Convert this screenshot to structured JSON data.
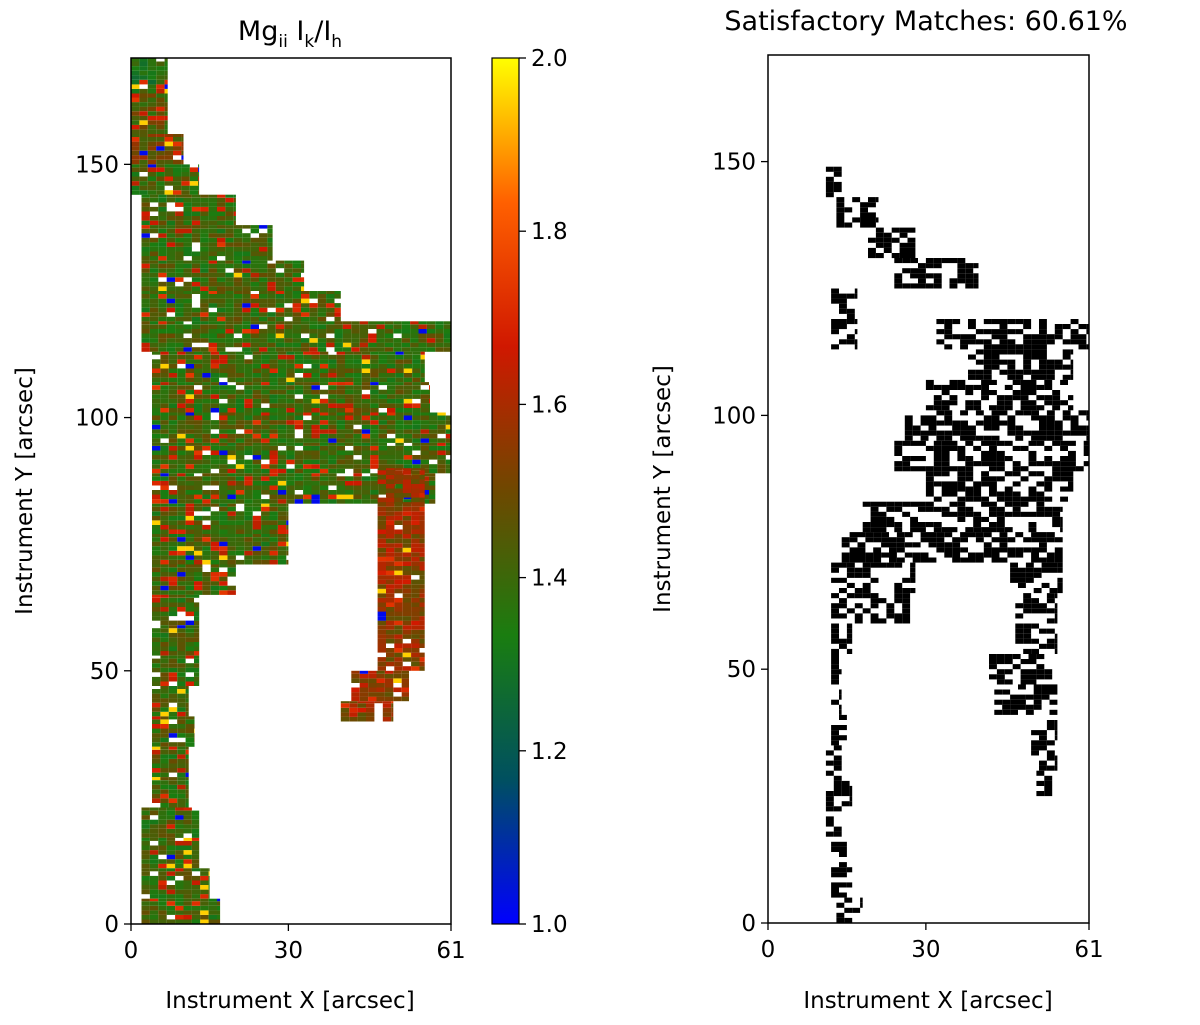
{
  "chart_data": [
    {
      "type": "heatmap",
      "title": {
        "base": "Mg",
        "sub1": "ii",
        "mid": " I",
        "sub2": "k",
        "slash": "/I",
        "sub3": "h"
      },
      "xlabel": "Instrument X [arcsec]",
      "ylabel": "Instrument Y [arcsec]",
      "xlim": [
        0,
        61
      ],
      "ylim": [
        0,
        171
      ],
      "xticks": [
        0,
        30,
        61
      ],
      "yticks": [
        0,
        50,
        100,
        150
      ],
      "grid": false,
      "colorbar": {
        "range": [
          1.0,
          2.0
        ],
        "ticks": [
          "1.0",
          "1.2",
          "1.4",
          "1.6",
          "1.8",
          "2.0"
        ],
        "colors": [
          "#0000ff",
          "#005060",
          "#1a7d10",
          "#6e4800",
          "#d01800",
          "#ff6000",
          "#ffff00"
        ]
      },
      "region_rows": [
        {
          "y": [
            164,
            171
          ],
          "x": [
            0,
            7
          ],
          "value": 1.35
        },
        {
          "y": [
            156,
            164
          ],
          "x": [
            0,
            7
          ],
          "value": 1.45
        },
        {
          "y": [
            150,
            156
          ],
          "x": [
            0,
            10
          ],
          "value": 1.5
        },
        {
          "y": [
            144,
            150
          ],
          "x": [
            0,
            13
          ],
          "value": 1.4
        },
        {
          "y": [
            138,
            144
          ],
          "x": [
            2,
            20
          ],
          "value": 1.4
        },
        {
          "y": [
            131,
            138
          ],
          "x": [
            2,
            27
          ],
          "value": 1.4
        },
        {
          "y": [
            125,
            131
          ],
          "x": [
            2,
            33
          ],
          "value": 1.4
        },
        {
          "y": [
            119,
            125
          ],
          "x": [
            2,
            40
          ],
          "value": 1.4
        },
        {
          "y": [
            113,
            119
          ],
          "x": [
            2,
            61
          ],
          "value": 1.4
        },
        {
          "y": [
            107,
            113
          ],
          "x": [
            4,
            56
          ],
          "value": 1.4
        },
        {
          "y": [
            101,
            107
          ],
          "x": [
            4,
            57
          ],
          "value": 1.4
        },
        {
          "y": [
            95,
            101
          ],
          "x": [
            4,
            61
          ],
          "value": 1.4
        },
        {
          "y": [
            89,
            95
          ],
          "x": [
            4,
            61
          ],
          "value": 1.4
        },
        {
          "y": [
            83,
            89
          ],
          "x": [
            4,
            58
          ],
          "value": 1.4
        },
        {
          "y": [
            77,
            83
          ],
          "x": [
            4,
            30
          ],
          "value": 1.4
        },
        {
          "y": [
            71,
            77
          ],
          "x": [
            4,
            30
          ],
          "value": 1.4
        },
        {
          "y": [
            65,
            71
          ],
          "x": [
            4,
            20
          ],
          "value": 1.4
        },
        {
          "y": [
            59,
            65
          ],
          "x": [
            4,
            13
          ],
          "value": 1.4
        },
        {
          "y": [
            53,
            59
          ],
          "x": [
            4,
            13
          ],
          "value": 1.4
        },
        {
          "y": [
            47,
            53
          ],
          "x": [
            4,
            13
          ],
          "value": 1.4
        },
        {
          "y": [
            41,
            47
          ],
          "x": [
            4,
            11
          ],
          "value": 1.4
        },
        {
          "y": [
            35,
            41
          ],
          "x": [
            4,
            12
          ],
          "value": 1.4
        },
        {
          "y": [
            29,
            35
          ],
          "x": [
            4,
            11
          ],
          "value": 1.4
        },
        {
          "y": [
            23,
            29
          ],
          "x": [
            4,
            11
          ],
          "value": 1.4
        },
        {
          "y": [
            17,
            23
          ],
          "x": [
            2,
            13
          ],
          "value": 1.4
        },
        {
          "y": [
            11,
            17
          ],
          "x": [
            2,
            13
          ],
          "value": 1.4
        },
        {
          "y": [
            5,
            11
          ],
          "x": [
            2,
            15
          ],
          "value": 1.4
        },
        {
          "y": [
            0,
            5
          ],
          "x": [
            2,
            17
          ],
          "value": 1.4
        },
        {
          "y": [
            50,
            90
          ],
          "x": [
            47,
            56
          ],
          "value": 1.55
        },
        {
          "y": [
            44,
            50
          ],
          "x": [
            42,
            53
          ],
          "value": 1.55
        },
        {
          "y": [
            40,
            44
          ],
          "x": [
            40,
            50
          ],
          "value": 1.55
        }
      ]
    },
    {
      "type": "heatmap",
      "title": "Satisfactory Matches: 60.61%",
      "xlabel": "Instrument X [arcsec]",
      "ylabel": "Instrument Y [arcsec]",
      "xlim": [
        0,
        61
      ],
      "ylim": [
        0,
        171
      ],
      "xticks": [
        0,
        30,
        61
      ],
      "yticks": [
        0,
        50,
        100,
        150
      ],
      "grid": false,
      "match_fraction_percent": 60.61,
      "match_color": "#000000",
      "region_rows": [
        {
          "y": [
            143,
            149
          ],
          "x": [
            11,
            14
          ]
        },
        {
          "y": [
            137,
            143
          ],
          "x": [
            13,
            21
          ]
        },
        {
          "y": [
            131,
            137
          ],
          "x": [
            19,
            28
          ]
        },
        {
          "y": [
            125,
            131
          ],
          "x": [
            24,
            40
          ]
        },
        {
          "y": [
            119,
            125
          ],
          "x": [
            12,
            17
          ]
        },
        {
          "y": [
            113,
            119
          ],
          "x": [
            12,
            17
          ]
        },
        {
          "y": [
            113,
            119
          ],
          "x": [
            32,
            61
          ]
        },
        {
          "y": [
            107,
            113
          ],
          "x": [
            38,
            58
          ]
        },
        {
          "y": [
            101,
            107
          ],
          "x": [
            30,
            58
          ]
        },
        {
          "y": [
            95,
            101
          ],
          "x": [
            26,
            61
          ]
        },
        {
          "y": [
            89,
            95
          ],
          "x": [
            24,
            61
          ]
        },
        {
          "y": [
            83,
            89
          ],
          "x": [
            30,
            58
          ]
        },
        {
          "y": [
            77,
            83
          ],
          "x": [
            18,
            56
          ]
        },
        {
          "y": [
            71,
            77
          ],
          "x": [
            14,
            56
          ]
        },
        {
          "y": [
            65,
            71
          ],
          "x": [
            12,
            28
          ]
        },
        {
          "y": [
            65,
            71
          ],
          "x": [
            46,
            56
          ]
        },
        {
          "y": [
            59,
            65
          ],
          "x": [
            12,
            27
          ]
        },
        {
          "y": [
            59,
            65
          ],
          "x": [
            47,
            55
          ]
        },
        {
          "y": [
            53,
            59
          ],
          "x": [
            12,
            16
          ]
        },
        {
          "y": [
            53,
            59
          ],
          "x": [
            47,
            55
          ]
        },
        {
          "y": [
            47,
            53
          ],
          "x": [
            12,
            14
          ]
        },
        {
          "y": [
            47,
            53
          ],
          "x": [
            42,
            54
          ]
        },
        {
          "y": [
            41,
            47
          ],
          "x": [
            12,
            14
          ]
        },
        {
          "y": [
            41,
            47
          ],
          "x": [
            43,
            55
          ]
        },
        {
          "y": [
            35,
            41
          ],
          "x": [
            12,
            15
          ]
        },
        {
          "y": [
            29,
            35
          ],
          "x": [
            11,
            14
          ]
        },
        {
          "y": [
            23,
            29
          ],
          "x": [
            11,
            16
          ]
        },
        {
          "y": [
            17,
            23
          ],
          "x": [
            11,
            14
          ]
        },
        {
          "y": [
            11,
            17
          ],
          "x": [
            12,
            15
          ]
        },
        {
          "y": [
            5,
            11
          ],
          "x": [
            12,
            16
          ]
        },
        {
          "y": [
            0,
            5
          ],
          "x": [
            13,
            18
          ]
        },
        {
          "y": [
            30,
            40
          ],
          "x": [
            50,
            55
          ]
        },
        {
          "y": [
            24,
            30
          ],
          "x": [
            51,
            54
          ]
        }
      ]
    }
  ]
}
